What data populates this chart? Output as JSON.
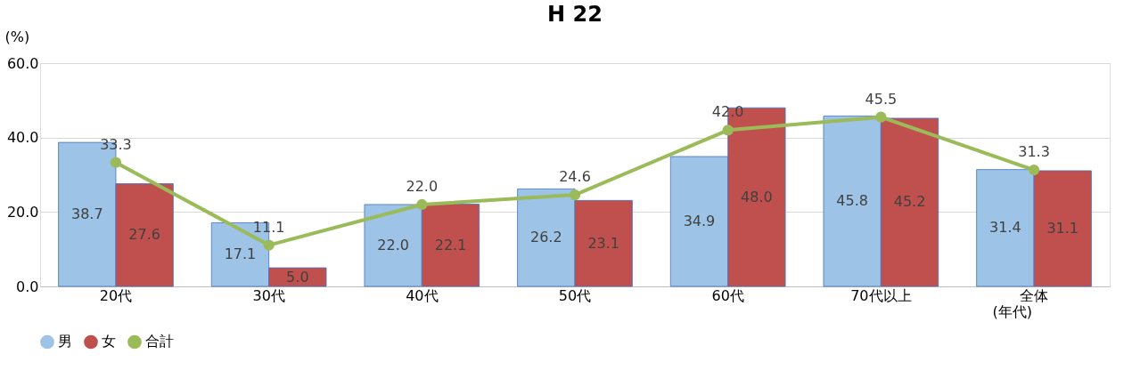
{
  "chart_data": {
    "type": "bar",
    "title": "H 22",
    "ylabel": "(%)",
    "xlabel": "(年代)",
    "categories": [
      "20代",
      "30代",
      "40代",
      "50代",
      "60代",
      "70代以上",
      "全体"
    ],
    "series": [
      {
        "name": "男",
        "color": "#9dc3e6",
        "values": [
          38.7,
          17.1,
          22.0,
          26.2,
          34.9,
          45.8,
          31.4
        ],
        "value_labels": [
          "38.7",
          "17.1",
          "22.0",
          "26.2",
          "34.9",
          "45.8",
          "31.4"
        ]
      },
      {
        "name": "女",
        "color": "#c0504d",
        "values": [
          27.6,
          5.0,
          22.1,
          23.1,
          48.0,
          45.2,
          31.1
        ],
        "value_labels": [
          "27.6",
          "5.0",
          "22.1",
          "23.1",
          "48.0",
          "45.2",
          "31.1"
        ]
      },
      {
        "name": "合計",
        "type": "line",
        "color": "#9bbb59",
        "marker": "circle",
        "values": [
          33.3,
          11.1,
          22.0,
          24.6,
          42.0,
          45.5,
          31.3
        ],
        "value_labels": [
          "33.3",
          "11.1",
          "22.0",
          "24.6",
          "42.0",
          "45.5",
          "31.3"
        ]
      }
    ],
    "ylim": [
      0,
      60
    ],
    "yticks": [
      {
        "value": 0,
        "label": "0.0"
      },
      {
        "value": 20,
        "label": "20.0"
      },
      {
        "value": 40,
        "label": "40.0"
      },
      {
        "value": 60,
        "label": "60.0"
      }
    ],
    "grid": "y",
    "legend": "bottom"
  }
}
